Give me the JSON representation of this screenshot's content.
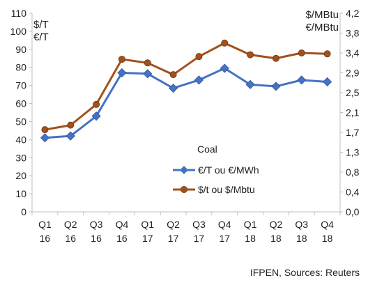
{
  "chart_data": {
    "type": "line",
    "categories": [
      [
        "Q1",
        "16"
      ],
      [
        "Q2",
        "16"
      ],
      [
        "Q3",
        "16"
      ],
      [
        "Q4",
        "16"
      ],
      [
        "Q1",
        "17"
      ],
      [
        "Q2",
        "17"
      ],
      [
        "Q3",
        "17"
      ],
      [
        "Q4",
        "17"
      ],
      [
        "Q1",
        "18"
      ],
      [
        "Q2",
        "18"
      ],
      [
        "Q3",
        "18"
      ],
      [
        "Q4",
        "18"
      ]
    ],
    "left_axis": {
      "units": [
        "$/T",
        "€/T"
      ],
      "ylim": [
        0,
        110
      ],
      "ticks": [
        "0",
        "10",
        "20",
        "30",
        "40",
        "50",
        "60",
        "70",
        "80",
        "90",
        "100",
        "110"
      ]
    },
    "right_axis": {
      "units": [
        "$/MBtu",
        "€/MBtu"
      ],
      "ylim": [
        0,
        4.2
      ],
      "ticks": [
        "0,0",
        "0,4",
        "0,8",
        "1,3",
        "1,7",
        "2,1",
        "2,5",
        "2,9",
        "3,4",
        "3,8",
        "4,2"
      ]
    },
    "legend": {
      "title": "Coal",
      "placement": "center-right"
    },
    "series": [
      {
        "name": "€/T ou €/MWh",
        "color": "#4472C4",
        "marker": "diamond",
        "values": [
          41,
          42,
          53,
          77,
          76.5,
          68.5,
          73,
          79.5,
          70.5,
          69.5,
          73,
          72
        ]
      },
      {
        "name": "$/t ou $/Mbtu",
        "color": "#A0521C",
        "marker": "circle",
        "values": [
          45.5,
          48,
          59.5,
          84.5,
          82.5,
          76,
          86,
          93.5,
          87,
          85,
          88,
          87.5
        ]
      }
    ],
    "grid": false,
    "source": "IFPEN, Sources: Reuters"
  }
}
